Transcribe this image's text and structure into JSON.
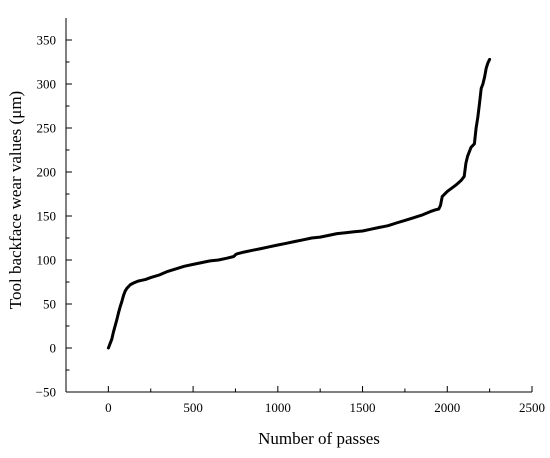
{
  "chart_data": {
    "type": "line",
    "title": "",
    "xlabel": "Number of passes",
    "ylabel": "Tool backface wear values (μm)",
    "xlim": [
      -250,
      2500
    ],
    "ylim": [
      -50,
      375
    ],
    "xticks": [
      0,
      500,
      1000,
      1500,
      2000,
      2500
    ],
    "yticks": [
      -50,
      0,
      50,
      100,
      150,
      200,
      250,
      300,
      350
    ],
    "grid": false,
    "legend": "none",
    "line_color": "#000000",
    "series": [
      {
        "x": [
          0,
          10,
          20,
          30,
          40,
          50,
          60,
          70,
          80,
          90,
          100,
          110,
          120,
          130,
          150,
          175,
          200,
          220,
          250,
          300,
          350,
          400,
          450,
          500,
          550,
          600,
          650,
          700,
          740,
          750,
          760,
          800,
          850,
          900,
          950,
          1000,
          1050,
          1100,
          1150,
          1200,
          1250,
          1300,
          1350,
          1400,
          1450,
          1500,
          1550,
          1600,
          1650,
          1700,
          1750,
          1800,
          1850,
          1900,
          1930,
          1950,
          1960,
          1970,
          2000,
          2050,
          2080,
          2100,
          2110,
          2120,
          2140,
          2160,
          2170,
          2180,
          2190,
          2200,
          2210,
          2220,
          2230,
          2240,
          2250
        ],
        "values": [
          0,
          5,
          10,
          18,
          25,
          32,
          40,
          47,
          53,
          60,
          65,
          68,
          70,
          72,
          74,
          76,
          77,
          78,
          80,
          83,
          87,
          90,
          93,
          95,
          97,
          99,
          100,
          102,
          104,
          106,
          107,
          109,
          111,
          113,
          115,
          117,
          119,
          121,
          123,
          125,
          126,
          128,
          130,
          131,
          132,
          133,
          135,
          137,
          139,
          142,
          145,
          148,
          151,
          155,
          157,
          158,
          162,
          172,
          178,
          185,
          190,
          195,
          210,
          218,
          228,
          232,
          250,
          262,
          278,
          295,
          300,
          308,
          318,
          324,
          328
        ]
      }
    ]
  }
}
